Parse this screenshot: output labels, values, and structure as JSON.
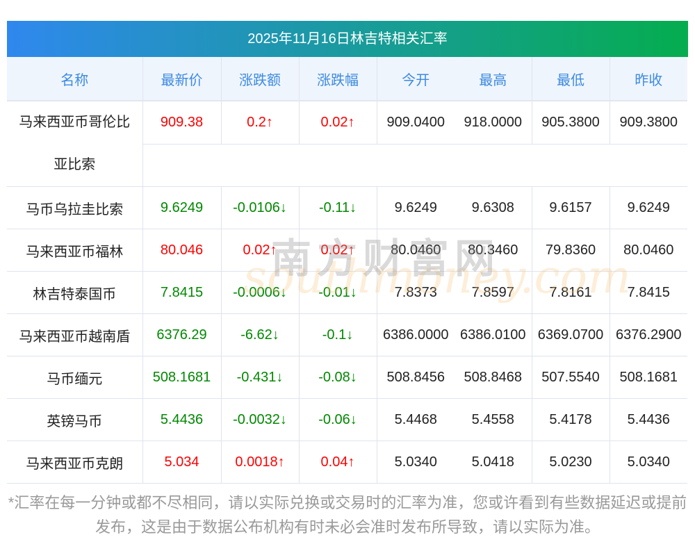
{
  "title": "2025年11月16日林吉特相关汇率",
  "headers": [
    "名称",
    "最新价",
    "涨跌额",
    "涨跌幅",
    "今开",
    "最高",
    "最低",
    "昨收"
  ],
  "rows": [
    {
      "name": "马来西亚币哥伦比亚比索",
      "dir": "up",
      "latest": "909.38",
      "change": "0.2↑",
      "pct": "0.02↑",
      "open": "909.0400",
      "high": "918.0000",
      "low": "905.3800",
      "prev": "909.3800"
    },
    {
      "name": "马币乌拉圭比索",
      "dir": "down",
      "latest": "9.6249",
      "change": "-0.0106↓",
      "pct": "-0.11↓",
      "open": "9.6249",
      "high": "9.6308",
      "low": "9.6157",
      "prev": "9.6249"
    },
    {
      "name": "马来西亚币福林",
      "dir": "up",
      "latest": "80.046",
      "change": "0.02↑",
      "pct": "0.02↑",
      "open": "80.0460",
      "high": "80.3460",
      "low": "79.8360",
      "prev": "80.0460"
    },
    {
      "name": "林吉特泰国币",
      "dir": "down",
      "latest": "7.8415",
      "change": "-0.0006↓",
      "pct": "-0.01↓",
      "open": "7.8373",
      "high": "7.8597",
      "low": "7.8161",
      "prev": "7.8415"
    },
    {
      "name": "马来西亚币越南盾",
      "dir": "down",
      "latest": "6376.29",
      "change": "-6.62↓",
      "pct": "-0.1↓",
      "open": "6386.0000",
      "high": "6386.0100",
      "low": "6369.0700",
      "prev": "6376.2900"
    },
    {
      "name": "马币缅元",
      "dir": "down",
      "latest": "508.1681",
      "change": "-0.431↓",
      "pct": "-0.08↓",
      "open": "508.8456",
      "high": "508.8468",
      "low": "507.5540",
      "prev": "508.1681"
    },
    {
      "name": "英镑马币",
      "dir": "down",
      "latest": "5.4436",
      "change": "-0.0032↓",
      "pct": "-0.06↓",
      "open": "5.4468",
      "high": "5.4558",
      "low": "5.4178",
      "prev": "5.4436"
    },
    {
      "name": "马来西亚币克朗",
      "dir": "up",
      "latest": "5.034",
      "change": "0.0018↑",
      "pct": "0.04↑",
      "open": "5.0340",
      "high": "5.0418",
      "low": "5.0230",
      "prev": "5.0340"
    }
  ],
  "watermark": {
    "cn": "南方财富网",
    "en": "southmoney.com"
  },
  "note": "*汇率在每一分钟或都不尽相同，请以实际兑换或交易时的汇率为准，您或许看到有些数据延迟或提前发布，这是由于数据公布机构有时未必会准时发布所导致，请以实际为准。",
  "colors": {
    "up": "#ff0000",
    "down": "#008800",
    "header_text": "#3c8ae0",
    "title_start": "#2f88ee",
    "title_end": "#05ad4f"
  }
}
